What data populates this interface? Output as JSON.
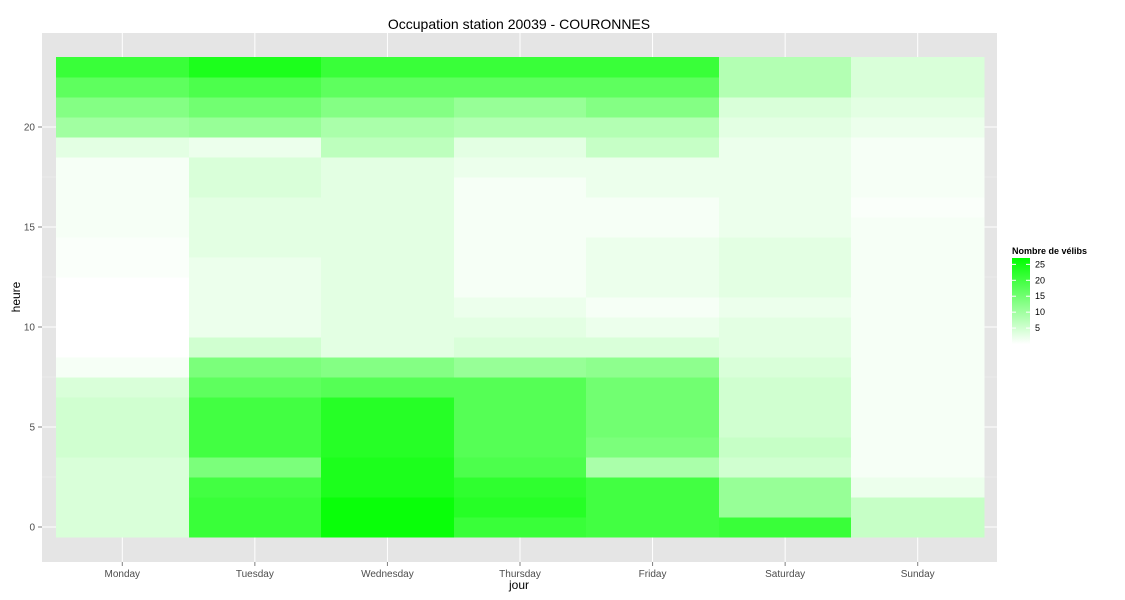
{
  "chart_data": {
    "type": "heatmap",
    "title": "Occupation station 20039 - COURONNES",
    "xlabel": "jour",
    "ylabel": "heure",
    "x_categories": [
      "Monday",
      "Tuesday",
      "Wednesday",
      "Thursday",
      "Friday",
      "Saturday",
      "Sunday"
    ],
    "y_hours": [
      0,
      1,
      2,
      3,
      4,
      5,
      6,
      7,
      8,
      9,
      10,
      11,
      12,
      13,
      14,
      15,
      16,
      17,
      18,
      19,
      20,
      21,
      22,
      23
    ],
    "ylim": [
      -0.5,
      23.5
    ],
    "y_ticks": [
      0,
      5,
      10,
      15,
      20
    ],
    "grid": true,
    "color_low": "#ffffff",
    "color_high": "#00ff00",
    "legend": {
      "title": "Nombre de vélibs",
      "position": "right",
      "range": [
        0,
        27
      ],
      "ticks": [
        5,
        10,
        15,
        20,
        25
      ]
    },
    "values": [
      [
        4,
        21,
        26,
        21,
        20,
        21,
        6
      ],
      [
        4,
        21,
        26,
        23,
        20,
        11,
        6
      ],
      [
        4,
        20,
        24,
        22,
        20,
        11,
        2
      ],
      [
        4,
        14,
        24,
        19,
        9,
        5,
        1
      ],
      [
        5,
        20,
        23,
        18,
        14,
        6,
        1
      ],
      [
        5,
        20,
        23,
        18,
        15,
        5,
        1
      ],
      [
        5,
        20,
        23,
        18,
        15,
        5,
        1
      ],
      [
        4,
        17,
        18,
        18,
        15,
        5,
        1
      ],
      [
        1,
        14,
        13,
        11,
        12,
        4,
        1
      ],
      [
        0,
        5,
        3,
        4,
        4,
        3,
        1
      ],
      [
        0,
        2,
        3,
        3,
        2,
        3,
        1
      ],
      [
        0,
        2,
        3,
        2,
        1,
        2,
        1
      ],
      [
        0,
        2,
        3,
        1,
        2,
        3,
        1
      ],
      [
        0.5,
        2,
        3,
        1,
        2,
        3,
        1
      ],
      [
        0.5,
        3,
        3,
        1,
        2,
        3,
        1
      ],
      [
        1,
        3,
        3,
        1,
        1,
        2,
        1
      ],
      [
        1,
        3,
        3,
        1,
        1,
        2,
        0.5
      ],
      [
        1,
        4,
        3,
        1,
        2,
        2,
        1
      ],
      [
        1,
        4,
        3,
        2,
        2,
        2,
        1
      ],
      [
        3,
        2,
        7,
        3,
        6,
        2,
        1
      ],
      [
        10,
        11,
        9,
        8,
        8,
        3,
        2
      ],
      [
        13,
        15,
        13,
        11,
        13,
        4,
        3
      ],
      [
        17,
        19,
        17,
        17,
        17,
        8,
        4
      ],
      [
        21,
        24,
        21,
        21,
        21,
        8,
        4
      ]
    ]
  }
}
